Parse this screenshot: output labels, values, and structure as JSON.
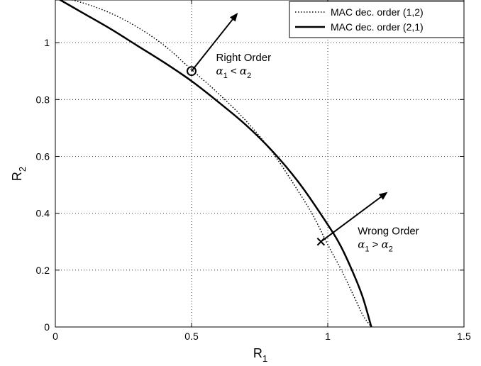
{
  "chart_data": {
    "type": "line",
    "xlabel": {
      "main": "R",
      "sub": "1"
    },
    "ylabel": {
      "main": "R",
      "sub": "2"
    },
    "xlim": [
      0,
      1.5
    ],
    "ylim": [
      0,
      1.15
    ],
    "xticks": [
      0,
      0.5,
      1,
      1.5
    ],
    "xtick_labels": [
      "0",
      "0.5",
      "1",
      "1.5"
    ],
    "yticks": [
      0,
      0.2,
      0.4,
      0.6,
      0.8,
      1
    ],
    "ytick_labels": [
      "0",
      "0.2",
      "0.4",
      "0.6",
      "0.8",
      "1"
    ],
    "grid": true,
    "legend_position": "top-right",
    "series": [
      {
        "name": "MAC dec. order (1,2)",
        "style": "dotted",
        "x": [
          0,
          0.1,
          0.2,
          0.3,
          0.4,
          0.5,
          0.6,
          0.7,
          0.8,
          0.9,
          0.95,
          1.0,
          1.05,
          1.1,
          1.13,
          1.16
        ],
        "y": [
          1.165,
          1.14,
          1.105,
          1.055,
          0.99,
          0.905,
          0.82,
          0.725,
          0.61,
          0.465,
          0.385,
          0.29,
          0.2,
          0.1,
          0.04,
          0
        ]
      },
      {
        "name": "MAC dec. order (2,1)",
        "style": "solid",
        "x": [
          0,
          0.1,
          0.2,
          0.3,
          0.4,
          0.5,
          0.6,
          0.7,
          0.8,
          0.9,
          1.0,
          1.05,
          1.1,
          1.13,
          1.16
        ],
        "y": [
          1.16,
          1.105,
          1.05,
          0.99,
          0.93,
          0.865,
          0.79,
          0.71,
          0.615,
          0.5,
          0.36,
          0.28,
          0.175,
          0.1,
          0
        ]
      }
    ],
    "markers": [
      {
        "shape": "circle",
        "x": 0.5,
        "y": 0.9
      },
      {
        "shape": "cross",
        "x": 0.975,
        "y": 0.3
      }
    ],
    "arrows": [
      {
        "from": [
          0.5,
          0.9
        ],
        "to": [
          0.67,
          1.105
        ]
      },
      {
        "from": [
          0.975,
          0.3
        ],
        "to": [
          1.22,
          0.475
        ]
      }
    ],
    "annotations": [
      {
        "title": "Right Order",
        "lhs": "α",
        "lhs_sub": "1",
        "op": " < ",
        "rhs": "α",
        "rhs_sub": "2",
        "x": 0.59,
        "y": 0.935
      },
      {
        "title": "Wrong Order",
        "lhs": "α",
        "lhs_sub": "1",
        "op": " > ",
        "rhs": "α",
        "rhs_sub": "2",
        "x": 1.11,
        "y": 0.325
      }
    ]
  }
}
